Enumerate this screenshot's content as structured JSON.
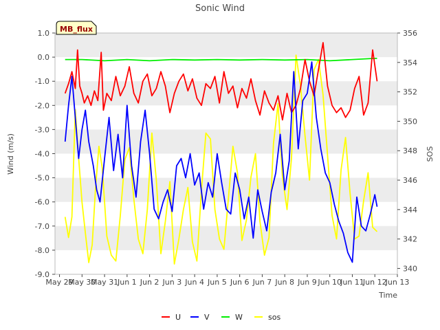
{
  "chart_data": {
    "type": "line",
    "title": "Sonic Wind",
    "badge": "MB_flux",
    "xlabel": "Time",
    "ylabel": "Wind (m/s)",
    "y2label": "SOS",
    "xlim": [
      -0.2,
      15.0
    ],
    "ylim": [
      -9.0,
      1.0
    ],
    "y2lim": [
      339.6,
      356.0
    ],
    "x_ticks": [
      {
        "v": 0,
        "label": "May 29"
      },
      {
        "v": 1,
        "label": "May 30"
      },
      {
        "v": 2,
        "label": "May 31"
      },
      {
        "v": 3,
        "label": "Jun 1"
      },
      {
        "v": 4,
        "label": "Jun 2"
      },
      {
        "v": 5,
        "label": "Jun 3"
      },
      {
        "v": 6,
        "label": "Jun 4"
      },
      {
        "v": 7,
        "label": "Jun 5"
      },
      {
        "v": 8,
        "label": "Jun 6"
      },
      {
        "v": 9,
        "label": "Jun 7"
      },
      {
        "v": 10,
        "label": "Jun 8"
      },
      {
        "v": 11,
        "label": "Jun 9"
      },
      {
        "v": 12,
        "label": "Jun 10"
      },
      {
        "v": 13,
        "label": "Jun 11"
      },
      {
        "v": 14,
        "label": "Jun 12"
      },
      {
        "v": 15,
        "label": "Jun 13"
      }
    ],
    "y_ticks": [
      {
        "v": 1.0,
        "label": "1.0"
      },
      {
        "v": 0.0,
        "label": "0.0"
      },
      {
        "v": -1.0,
        "label": "-1.0"
      },
      {
        "v": -2.0,
        "label": "-2.0"
      },
      {
        "v": -3.0,
        "label": "-3.0"
      },
      {
        "v": -4.0,
        "label": "-4.0"
      },
      {
        "v": -5.0,
        "label": "-5.0"
      },
      {
        "v": -6.0,
        "label": "-6.0"
      },
      {
        "v": -7.0,
        "label": "-7.0"
      },
      {
        "v": -8.0,
        "label": "-8.0"
      },
      {
        "v": -9.0,
        "label": "-9.0"
      }
    ],
    "y2_ticks": [
      {
        "v": 340,
        "label": "340"
      },
      {
        "v": 342,
        "label": "342"
      },
      {
        "v": 344,
        "label": "344"
      },
      {
        "v": 346,
        "label": "346"
      },
      {
        "v": 348,
        "label": "348"
      },
      {
        "v": 350,
        "label": "350"
      },
      {
        "v": 352,
        "label": "352"
      },
      {
        "v": 354,
        "label": "354"
      },
      {
        "v": 356,
        "label": "356"
      }
    ],
    "grid": "horizontal bands",
    "legend_position": "bottom",
    "series": [
      {
        "name": "U",
        "axis": "left",
        "color": "#ff0000",
        "x": [
          0.25,
          0.4,
          0.55,
          0.7,
          0.8,
          0.9,
          1.0,
          1.1,
          1.25,
          1.4,
          1.55,
          1.7,
          1.85,
          1.95,
          2.1,
          2.3,
          2.5,
          2.7,
          2.9,
          3.1,
          3.3,
          3.5,
          3.7,
          3.9,
          4.1,
          4.3,
          4.5,
          4.7,
          4.9,
          5.1,
          5.3,
          5.5,
          5.7,
          5.9,
          6.1,
          6.3,
          6.5,
          6.7,
          6.9,
          7.1,
          7.3,
          7.5,
          7.7,
          7.9,
          8.1,
          8.3,
          8.5,
          8.7,
          8.9,
          9.1,
          9.3,
          9.5,
          9.7,
          9.9,
          10.1,
          10.3,
          10.5,
          10.7,
          10.9,
          11.1,
          11.3,
          11.5,
          11.7,
          11.9,
          12.1,
          12.3,
          12.5,
          12.7,
          12.9,
          13.1,
          13.3,
          13.5,
          13.7,
          13.9,
          14.1
        ],
        "y": [
          -1.5,
          -1.1,
          -0.6,
          -1.3,
          0.3,
          -1.2,
          -1.5,
          -1.9,
          -1.6,
          -2.0,
          -1.4,
          -1.8,
          0.2,
          -2.2,
          -1.5,
          -1.8,
          -0.8,
          -1.6,
          -1.2,
          -0.4,
          -1.5,
          -1.9,
          -1.0,
          -0.7,
          -1.6,
          -1.3,
          -0.6,
          -1.2,
          -2.3,
          -1.5,
          -1.0,
          -0.7,
          -1.4,
          -0.9,
          -1.7,
          -2.0,
          -1.1,
          -1.3,
          -0.8,
          -1.9,
          -0.6,
          -1.5,
          -1.2,
          -2.1,
          -1.3,
          -1.7,
          -0.9,
          -1.8,
          -2.4,
          -1.4,
          -1.9,
          -2.2,
          -1.6,
          -2.6,
          -1.5,
          -2.3,
          -2.0,
          -1.3,
          -0.1,
          -1.0,
          -1.6,
          -0.5,
          0.6,
          -1.2,
          -2.0,
          -2.3,
          -2.1,
          -2.5,
          -2.2,
          -1.3,
          -0.8,
          -2.4,
          -1.9,
          0.3,
          -1.0
        ]
      },
      {
        "name": "V",
        "axis": "left",
        "color": "#0000ff",
        "x": [
          0.25,
          0.4,
          0.55,
          0.7,
          0.85,
          1.0,
          1.15,
          1.3,
          1.5,
          1.65,
          1.8,
          2.0,
          2.2,
          2.4,
          2.6,
          2.8,
          3.0,
          3.2,
          3.4,
          3.6,
          3.8,
          4.0,
          4.2,
          4.4,
          4.6,
          4.8,
          5.0,
          5.2,
          5.4,
          5.6,
          5.8,
          6.0,
          6.2,
          6.4,
          6.6,
          6.8,
          7.0,
          7.2,
          7.4,
          7.6,
          7.8,
          8.0,
          8.2,
          8.4,
          8.6,
          8.8,
          9.0,
          9.2,
          9.4,
          9.6,
          9.8,
          10.0,
          10.2,
          10.4,
          10.6,
          10.8,
          11.0,
          11.2,
          11.4,
          11.6,
          11.8,
          12.0,
          12.2,
          12.4,
          12.6,
          12.8,
          13.0,
          13.2,
          13.4,
          13.6,
          13.8,
          14.0,
          14.1
        ],
        "y": [
          -3.5,
          -2.0,
          -0.8,
          -2.5,
          -4.2,
          -3.0,
          -2.2,
          -3.5,
          -4.5,
          -5.5,
          -6.0,
          -4.2,
          -2.5,
          -4.7,
          -3.2,
          -5.0,
          -2.0,
          -4.5,
          -5.8,
          -3.5,
          -2.2,
          -4.0,
          -6.3,
          -6.7,
          -6.0,
          -5.5,
          -6.4,
          -4.5,
          -4.2,
          -5.0,
          -4.0,
          -5.3,
          -4.8,
          -6.3,
          -5.2,
          -5.8,
          -4.0,
          -5.2,
          -6.3,
          -6.5,
          -4.8,
          -5.5,
          -6.7,
          -5.8,
          -7.5,
          -5.5,
          -6.4,
          -7.2,
          -5.6,
          -4.8,
          -3.2,
          -5.5,
          -4.3,
          -0.6,
          -3.8,
          -1.8,
          -1.5,
          -0.2,
          -2.5,
          -3.8,
          -4.8,
          -5.2,
          -6.1,
          -6.8,
          -7.3,
          -8.1,
          -8.5,
          -5.8,
          -7.0,
          -7.2,
          -6.5,
          -5.7,
          -6.2
        ]
      },
      {
        "name": "W",
        "axis": "left",
        "color": "#00ee00",
        "x": [
          0.25,
          1.0,
          2.0,
          3.0,
          4.0,
          5.0,
          6.0,
          7.0,
          8.0,
          9.0,
          10.0,
          11.0,
          12.0,
          13.0,
          14.0,
          14.1
        ],
        "y": [
          -0.1,
          -0.1,
          -0.15,
          -0.1,
          -0.15,
          -0.1,
          -0.12,
          -0.1,
          -0.12,
          -0.1,
          -0.12,
          -0.1,
          -0.15,
          -0.1,
          -0.05,
          -0.05
        ]
      },
      {
        "name": "sos",
        "axis": "right",
        "color": "#ffff00",
        "x": [
          0.25,
          0.4,
          0.55,
          0.7,
          0.85,
          1.0,
          1.15,
          1.3,
          1.45,
          1.6,
          1.75,
          1.9,
          2.1,
          2.3,
          2.5,
          2.7,
          2.9,
          3.1,
          3.3,
          3.5,
          3.7,
          3.9,
          4.1,
          4.3,
          4.5,
          4.7,
          4.9,
          5.1,
          5.3,
          5.5,
          5.7,
          5.9,
          6.1,
          6.3,
          6.5,
          6.7,
          6.9,
          7.1,
          7.3,
          7.5,
          7.7,
          7.9,
          8.1,
          8.3,
          8.5,
          8.7,
          8.9,
          9.1,
          9.3,
          9.5,
          9.7,
          9.9,
          10.1,
          10.3,
          10.5,
          10.7,
          10.9,
          11.1,
          11.3,
          11.5,
          11.7,
          11.9,
          12.1,
          12.3,
          12.5,
          12.7,
          12.9,
          13.1,
          13.3,
          13.5,
          13.7,
          13.9,
          14.1
        ],
        "y": [
          343.5,
          342.1,
          343.5,
          350.8,
          347.5,
          344.5,
          342.4,
          340.4,
          341.6,
          345.5,
          348.3,
          346.8,
          342.2,
          340.9,
          340.5,
          343.6,
          347.4,
          348.2,
          344.7,
          342.0,
          341.0,
          344.0,
          349.2,
          346.0,
          341.0,
          343.2,
          345.9,
          340.3,
          342.0,
          344.0,
          345.5,
          341.8,
          340.5,
          345.3,
          349.2,
          348.8,
          344.0,
          342.0,
          341.3,
          344.8,
          348.3,
          346.5,
          341.9,
          343.3,
          346.2,
          347.8,
          343.2,
          340.9,
          342.1,
          348.5,
          351.2,
          346.2,
          344.0,
          347.5,
          354.5,
          352.4,
          349.0,
          346.0,
          353.5,
          354.2,
          351.8,
          347.7,
          343.6,
          342.0,
          346.7,
          348.9,
          345.1,
          342.0,
          342.2,
          344.6,
          346.5,
          342.8,
          342.5
        ]
      }
    ]
  }
}
